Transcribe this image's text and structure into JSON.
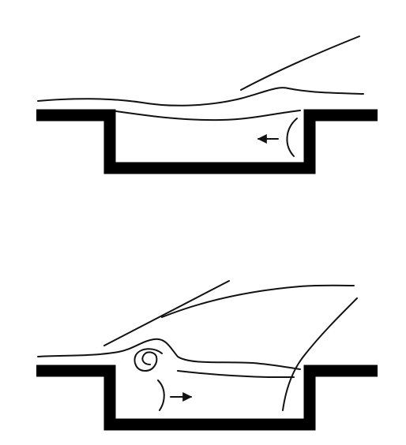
{
  "colors": {
    "background": "#ffffff",
    "wall": "#000000",
    "flow_line": "#111111"
  },
  "panels": [
    {
      "id": "top",
      "elements": [
        "cavity-wall",
        "streamline",
        "flow-arrow",
        "recirculation-curve"
      ]
    },
    {
      "id": "bottom",
      "elements": [
        "cavity-wall",
        "streamline",
        "vortex-spiral",
        "flow-arrow",
        "shear-line"
      ]
    }
  ]
}
